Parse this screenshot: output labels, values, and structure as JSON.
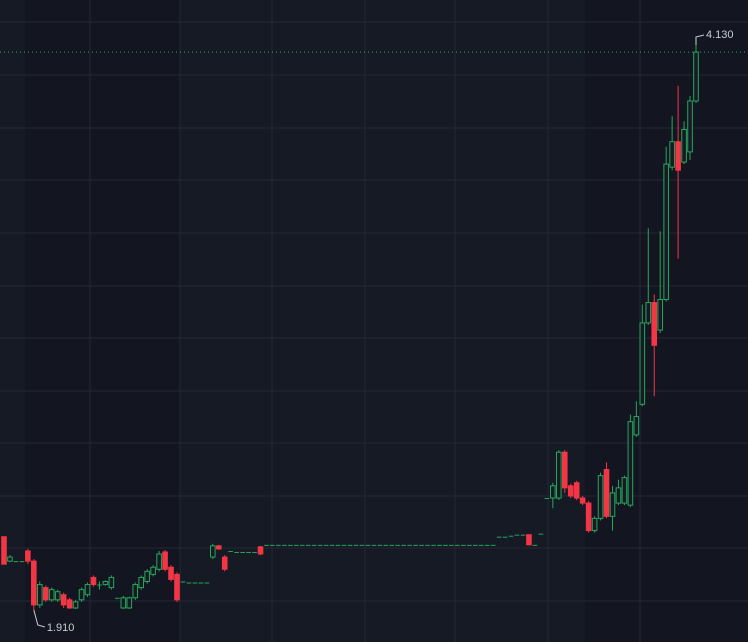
{
  "chart_data": {
    "type": "candlestick",
    "up_color": "#26a65b",
    "down_color": "#f23645",
    "annotations": [
      "4.130",
      "1.910"
    ],
    "candles": [
      [
        2.198,
        2.198,
        2.09,
        2.09
      ],
      [
        2.102,
        2.126,
        2.098,
        2.118
      ],
      [
        2.102,
        2.102,
        2.102,
        2.102
      ],
      [
        2.102,
        2.102,
        2.102,
        2.102
      ],
      [
        2.142,
        2.15,
        2.09,
        2.102
      ],
      [
        2.102,
        2.11,
        1.91,
        1.93
      ],
      [
        1.93,
        2.022,
        1.918,
        2.01
      ],
      [
        1.998,
        2.006,
        1.942,
        1.95
      ],
      [
        1.95,
        1.998,
        1.942,
        1.99
      ],
      [
        1.95,
        1.99,
        1.942,
        1.982
      ],
      [
        1.97,
        1.978,
        1.918,
        1.93
      ],
      [
        1.95,
        1.958,
        1.914,
        1.918
      ],
      [
        1.918,
        1.95,
        1.914,
        1.942
      ],
      [
        1.95,
        1.998,
        1.942,
        1.99
      ],
      [
        1.97,
        2.018,
        1.962,
        2.01
      ],
      [
        2.038,
        2.046,
        2.002,
        2.01
      ],
      [
        2.01,
        2.022,
        1.99,
        2.01
      ],
      [
        2.01,
        2.026,
        2.006,
        2.022
      ],
      [
        1.998,
        2.046,
        1.99,
        2.038
      ],
      [
        1.958,
        1.958,
        1.958,
        1.958
      ],
      [
        1.918,
        1.966,
        1.914,
        1.958
      ],
      [
        1.918,
        1.962,
        1.914,
        1.958
      ],
      [
        1.958,
        2.018,
        1.95,
        2.01
      ],
      [
        1.998,
        2.046,
        1.99,
        2.038
      ],
      [
        2.022,
        2.07,
        2.014,
        2.062
      ],
      [
        2.05,
        2.086,
        2.042,
        2.078
      ],
      [
        2.07,
        2.142,
        2.062,
        2.13
      ],
      [
        2.138,
        2.146,
        2.062,
        2.07
      ],
      [
        2.078,
        2.086,
        2.022,
        2.03
      ],
      [
        2.05,
        2.058,
        1.942,
        1.95
      ],
      [
        2.022,
        2.022,
        2.022,
        2.022
      ],
      [
        2.018,
        2.018,
        2.018,
        2.018
      ],
      [
        2.018,
        2.018,
        2.018,
        2.018
      ],
      [
        2.018,
        2.018,
        2.018,
        2.018
      ],
      [
        2.018,
        2.018,
        2.018,
        2.018
      ],
      [
        2.118,
        2.17,
        2.11,
        2.162
      ],
      [
        2.162,
        2.166,
        2.146,
        2.15
      ],
      [
        2.118,
        2.126,
        2.062,
        2.07
      ],
      [
        2.142,
        2.142,
        2.142,
        2.142
      ],
      [
        2.138,
        2.138,
        2.138,
        2.138
      ],
      [
        2.138,
        2.138,
        2.138,
        2.138
      ],
      [
        2.138,
        2.138,
        2.138,
        2.138
      ],
      [
        2.138,
        2.138,
        2.138,
        2.138
      ],
      [
        2.158,
        2.162,
        2.126,
        2.13
      ],
      [
        2.166,
        2.166,
        2.166,
        2.166
      ],
      [
        2.166,
        2.166,
        2.166,
        2.166
      ],
      [
        2.166,
        2.166,
        2.166,
        2.166
      ],
      [
        2.166,
        2.166,
        2.166,
        2.166
      ],
      [
        2.166,
        2.166,
        2.166,
        2.166
      ],
      [
        2.166,
        2.166,
        2.166,
        2.166
      ],
      [
        2.166,
        2.166,
        2.166,
        2.166
      ],
      [
        2.166,
        2.166,
        2.166,
        2.166
      ],
      [
        2.166,
        2.166,
        2.166,
        2.166
      ],
      [
        2.166,
        2.166,
        2.166,
        2.166
      ],
      [
        2.166,
        2.166,
        2.166,
        2.166
      ],
      [
        2.166,
        2.166,
        2.166,
        2.166
      ],
      [
        2.166,
        2.166,
        2.166,
        2.166
      ],
      [
        2.166,
        2.166,
        2.166,
        2.166
      ],
      [
        2.166,
        2.166,
        2.166,
        2.166
      ],
      [
        2.166,
        2.166,
        2.166,
        2.166
      ],
      [
        2.166,
        2.166,
        2.166,
        2.166
      ],
      [
        2.166,
        2.166,
        2.166,
        2.166
      ],
      [
        2.166,
        2.166,
        2.166,
        2.166
      ],
      [
        2.166,
        2.166,
        2.166,
        2.166
      ],
      [
        2.166,
        2.166,
        2.166,
        2.166
      ],
      [
        2.166,
        2.166,
        2.166,
        2.166
      ],
      [
        2.166,
        2.166,
        2.166,
        2.166
      ],
      [
        2.166,
        2.166,
        2.166,
        2.166
      ],
      [
        2.166,
        2.166,
        2.166,
        2.166
      ],
      [
        2.166,
        2.166,
        2.166,
        2.166
      ],
      [
        2.166,
        2.166,
        2.166,
        2.166
      ],
      [
        2.166,
        2.166,
        2.166,
        2.166
      ],
      [
        2.166,
        2.166,
        2.166,
        2.166
      ],
      [
        2.166,
        2.166,
        2.166,
        2.166
      ],
      [
        2.166,
        2.166,
        2.166,
        2.166
      ],
      [
        2.166,
        2.166,
        2.166,
        2.166
      ],
      [
        2.166,
        2.166,
        2.166,
        2.166
      ],
      [
        2.166,
        2.166,
        2.166,
        2.166
      ],
      [
        2.166,
        2.166,
        2.166,
        2.166
      ],
      [
        2.166,
        2.166,
        2.166,
        2.166
      ],
      [
        2.166,
        2.166,
        2.166,
        2.166
      ],
      [
        2.166,
        2.166,
        2.166,
        2.166
      ],
      [
        2.166,
        2.166,
        2.166,
        2.166
      ],
      [
        2.198,
        2.198,
        2.198,
        2.198
      ],
      [
        2.198,
        2.198,
        2.198,
        2.198
      ],
      [
        2.202,
        2.202,
        2.202,
        2.202
      ],
      [
        2.206,
        2.206,
        2.206,
        2.206
      ],
      [
        2.206,
        2.206,
        2.206,
        2.206
      ],
      [
        2.206,
        2.206,
        2.166,
        2.166
      ],
      [
        2.166,
        2.166,
        2.166,
        2.166
      ],
      [
        2.21,
        2.21,
        2.21,
        2.21
      ],
      [
        2.35,
        2.35,
        2.35,
        2.35
      ],
      [
        2.35,
        2.41,
        2.31,
        2.398
      ],
      [
        2.35,
        2.538,
        2.342,
        2.53
      ],
      [
        2.53,
        2.538,
        2.37,
        2.39
      ],
      [
        2.398,
        2.406,
        2.35,
        2.358
      ],
      [
        2.41,
        2.418,
        2.342,
        2.35
      ],
      [
        2.35,
        2.358,
        2.322,
        2.33
      ],
      [
        2.33,
        2.338,
        2.214,
        2.222
      ],
      [
        2.222,
        2.278,
        2.214,
        2.27
      ],
      [
        2.27,
        2.45,
        2.262,
        2.438
      ],
      [
        2.462,
        2.49,
        2.27,
        2.278
      ],
      [
        2.278,
        2.398,
        2.222,
        2.37
      ],
      [
        2.33,
        2.422,
        2.322,
        2.39
      ],
      [
        2.33,
        2.438,
        2.322,
        2.43
      ],
      [
        2.322,
        2.678,
        2.314,
        2.65
      ],
      [
        2.598,
        2.73,
        2.59,
        2.67
      ],
      [
        2.718,
        3.11,
        2.71,
        3.038
      ],
      [
        3.038,
        3.41,
        3.03,
        3.118
      ],
      [
        3.118,
        3.15,
        2.75,
        2.95
      ],
      [
        3.01,
        3.398,
        2.998,
        3.13
      ],
      [
        3.13,
        3.73,
        3.122,
        3.662
      ],
      [
        3.65,
        3.85,
        3.638,
        3.75
      ],
      [
        3.75,
        3.97,
        3.29,
        3.638
      ],
      [
        3.67,
        3.83,
        3.662,
        3.798
      ],
      [
        3.71,
        3.93,
        3.678,
        3.91
      ],
      [
        3.91,
        4.13,
        3.902,
        4.102
      ]
    ]
  }
}
